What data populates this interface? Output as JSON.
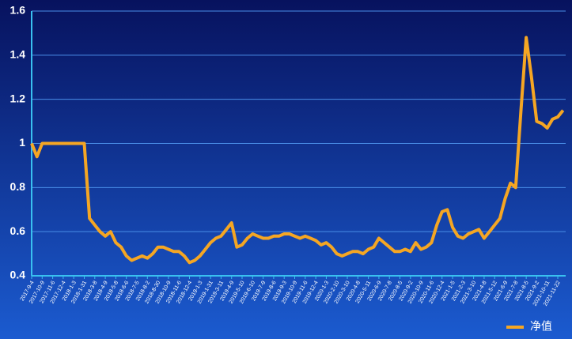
{
  "chart_data": {
    "type": "line",
    "categories": [
      "2017-9-4",
      null,
      "2017-10-9",
      null,
      "2017-11-6",
      null,
      "2017-12-4",
      null,
      "2018-1-3",
      null,
      "2018-1-31",
      null,
      "2018-3-8",
      null,
      "2018-4-9",
      null,
      "2018-5-8",
      null,
      "2018-6-6",
      null,
      "2018-7-5",
      null,
      "2018-8-2",
      null,
      "2018-8-30",
      null,
      "2018-10-9",
      null,
      "2018-11-6",
      null,
      "2018-12-4",
      null,
      "2019-1-3",
      null,
      "2019-1-31",
      null,
      "2019-3-11",
      null,
      "2019-4-9",
      null,
      "2019-5-10",
      null,
      "2019-6-10",
      null,
      "2019-7-9",
      null,
      "2019-8-6",
      null,
      "2019-9-3",
      null,
      "2019-10-9",
      null,
      "2019-11-6",
      null,
      "2019-12-4",
      null,
      "2020-1-3",
      null,
      "2020-2-10",
      null,
      "2020-3-10",
      null,
      "2020-4-8",
      null,
      "2020-5-11",
      null,
      "2020-6-9",
      null,
      "2020-7-8",
      null,
      "2020-8-5",
      null,
      "2020-9-2",
      null,
      "2020-10-9",
      null,
      "2020-11-6",
      null,
      "2020-12-4",
      null,
      "2021-1-5",
      null,
      "2021-2-3",
      null,
      "2021-3-10",
      null,
      "2021-4-8",
      null,
      "2021-5-12",
      null,
      "2021-6-9",
      null,
      "2021-7-8",
      null,
      "2021-8-5",
      null,
      "2021-9-2",
      null,
      "2021-10-11",
      null,
      "2021-11-22",
      null
    ],
    "series": [
      {
        "name": "净值",
        "color": "#f5a623",
        "values": [
          1.0,
          0.94,
          1.0,
          1.0,
          1.0,
          1.0,
          1.0,
          1.0,
          1.0,
          1.0,
          1.0,
          0.66,
          0.63,
          0.6,
          0.58,
          0.6,
          0.55,
          0.53,
          0.49,
          0.47,
          0.48,
          0.49,
          0.48,
          0.5,
          0.53,
          0.53,
          0.52,
          0.51,
          0.51,
          0.49,
          0.46,
          0.47,
          0.49,
          0.52,
          0.55,
          0.57,
          0.58,
          0.61,
          0.64,
          0.53,
          0.54,
          0.57,
          0.59,
          0.58,
          0.57,
          0.57,
          0.58,
          0.58,
          0.59,
          0.59,
          0.58,
          0.57,
          0.58,
          0.57,
          0.56,
          0.54,
          0.55,
          0.53,
          0.5,
          0.49,
          0.5,
          0.51,
          0.51,
          0.5,
          0.52,
          0.53,
          0.57,
          0.55,
          0.53,
          0.51,
          0.51,
          0.52,
          0.51,
          0.55,
          0.52,
          0.53,
          0.55,
          0.63,
          0.69,
          0.7,
          0.62,
          0.58,
          0.57,
          0.59,
          0.6,
          0.61,
          0.57,
          0.6,
          0.63,
          0.66,
          0.75,
          0.82,
          0.8,
          1.15,
          1.48,
          1.3,
          1.1,
          1.09,
          1.07,
          1.11,
          1.12,
          1.15
        ]
      }
    ],
    "ylim": [
      0.4,
      1.6
    ],
    "yticks": [
      0.4,
      0.6,
      0.8,
      1,
      1.2,
      1.4,
      1.6
    ],
    "grid": true,
    "legend": "bottom-right"
  }
}
